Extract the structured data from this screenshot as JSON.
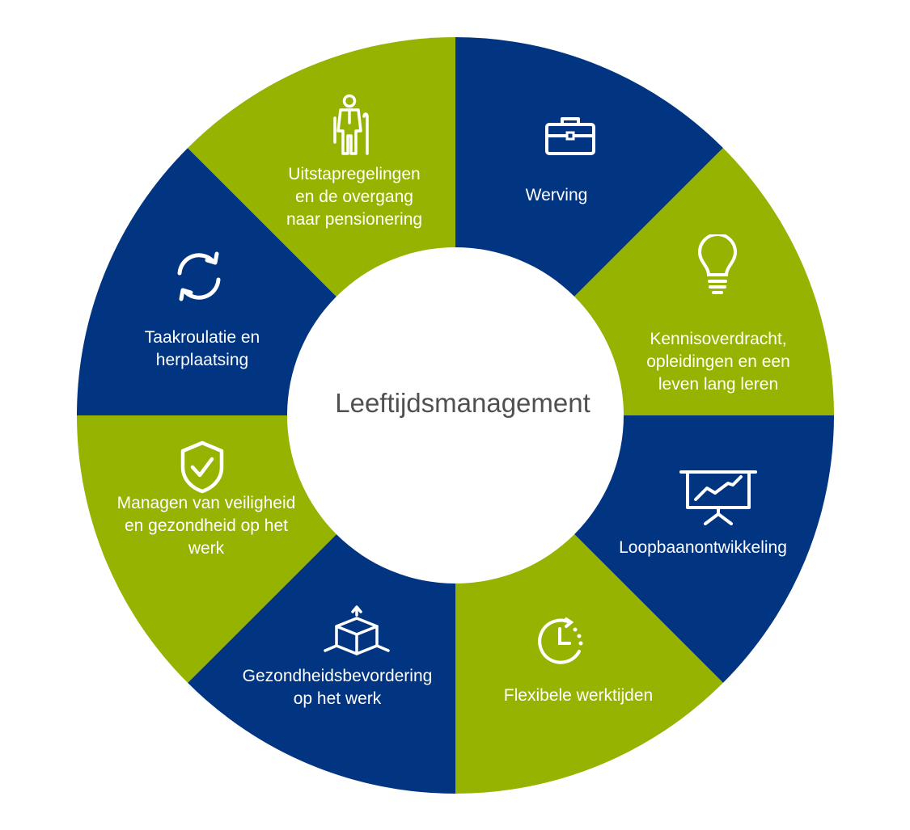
{
  "center": {
    "title": "Leeftijdsmanagement"
  },
  "colors": {
    "blue": "#013481",
    "green": "#97B301",
    "white": "#ffffff",
    "text_dark": "#505050"
  },
  "segments": [
    {
      "label": "Werving",
      "icon": "briefcase-icon",
      "color": "blue"
    },
    {
      "label": "Kennisoverdracht,\nopleidingen en een\nleven lang leren",
      "icon": "lightbulb-icon",
      "color": "green"
    },
    {
      "label": "Loopbaanontwikkeling",
      "icon": "presentation-chart-icon",
      "color": "blue"
    },
    {
      "label": "Flexibele werktijden",
      "icon": "clock-icon",
      "color": "green"
    },
    {
      "label": "Gezondheidsbevordering\nop het werk",
      "icon": "cube-arrows-icon",
      "color": "blue"
    },
    {
      "label": "Managen van veiligheid\nen gezondheid op het\nwerk",
      "icon": "shield-check-icon",
      "color": "green"
    },
    {
      "label": "Taakroulatie en\nherplaatsing",
      "icon": "rotate-arrows-icon",
      "color": "blue"
    },
    {
      "label": "Uitstapregelingen\nen de overgang\nnaar pensionering",
      "icon": "elderly-person-icon",
      "color": "green"
    }
  ]
}
